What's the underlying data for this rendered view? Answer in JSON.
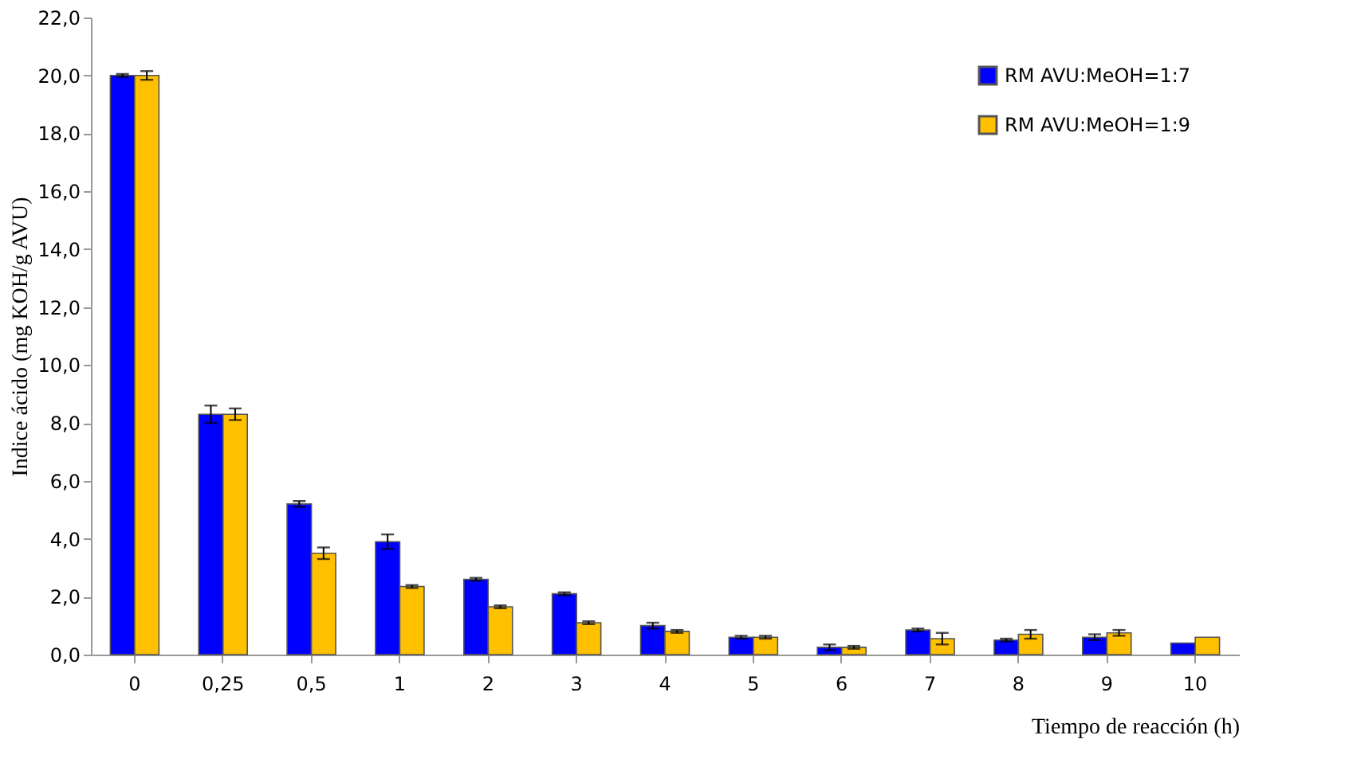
{
  "chart_data": {
    "type": "bar",
    "xlabel": "Tiempo de reacción (h)",
    "ylabel": "Indice ácido (mg KOH/g AVU)",
    "categories": [
      "0",
      "0,25",
      "0,5",
      "1",
      "2",
      "3",
      "4",
      "5",
      "6",
      "7",
      "8",
      "9",
      "10"
    ],
    "series": [
      {
        "name": "RM AVU:MeOH=1:7",
        "color": "#0000ff",
        "values": [
          20.0,
          8.3,
          5.2,
          3.9,
          2.6,
          2.1,
          1.0,
          0.6,
          0.25,
          0.85,
          0.5,
          0.6,
          0.4
        ],
        "errors": [
          0.05,
          0.3,
          0.1,
          0.25,
          0.05,
          0.05,
          0.1,
          0.05,
          0.1,
          0.05,
          0.05,
          0.1,
          null
        ]
      },
      {
        "name": "RM AVU:MeOH=1:9",
        "color": "#ffc000",
        "values": [
          20.0,
          8.3,
          3.5,
          2.35,
          1.65,
          1.1,
          0.8,
          0.6,
          0.25,
          0.55,
          0.7,
          0.75,
          0.6
        ],
        "errors": [
          0.15,
          0.2,
          0.2,
          0.05,
          0.05,
          0.05,
          0.05,
          0.05,
          0.05,
          0.2,
          0.15,
          0.1,
          null
        ]
      }
    ],
    "ylim": [
      0,
      22
    ],
    "yticks": [
      {
        "value": 0,
        "label": "0,0"
      },
      {
        "value": 2,
        "label": "2,0"
      },
      {
        "value": 4,
        "label": "4,0"
      },
      {
        "value": 6,
        "label": "6,0"
      },
      {
        "value": 8,
        "label": "8,0"
      },
      {
        "value": 10,
        "label": "10,0"
      },
      {
        "value": 12,
        "label": "12,0"
      },
      {
        "value": 14,
        "label": "14,0"
      },
      {
        "value": 16,
        "label": "16,0"
      },
      {
        "value": 18,
        "label": "18,0"
      },
      {
        "value": 20,
        "label": "20,0"
      },
      {
        "value": 22,
        "label": "22,0"
      }
    ],
    "grid": false,
    "legend": "top right"
  }
}
